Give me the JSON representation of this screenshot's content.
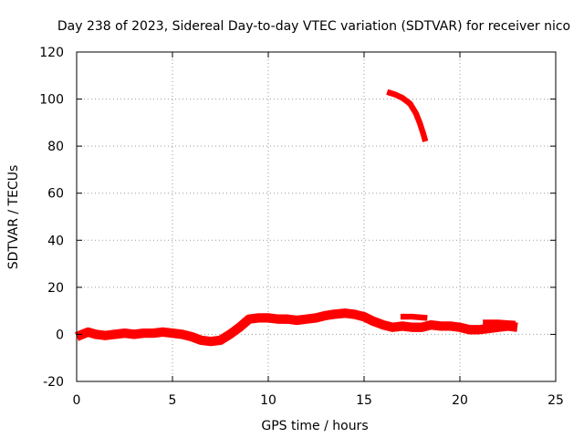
{
  "chart_data": {
    "type": "scatter",
    "title": "Day 238 of 2023, Sidereal Day-to-day VTEC variation (SDTVAR) for receiver nico",
    "xlabel": "GPS time / hours",
    "ylabel": "SDTVAR / TECUs",
    "xlim": [
      0,
      25
    ],
    "ylim": [
      -20,
      120
    ],
    "x_ticks": [
      0,
      5,
      10,
      15,
      20,
      25
    ],
    "y_ticks": [
      -20,
      0,
      20,
      40,
      60,
      80,
      100,
      120
    ],
    "x_tick_labels": [
      "0",
      "5",
      "10",
      "15",
      "20",
      "25"
    ],
    "y_tick_labels": [
      "-20",
      "0",
      "20",
      "40",
      "60",
      "80",
      "100",
      "120"
    ],
    "grid": true,
    "series_color": "#ff0000",
    "series": [
      {
        "name": "SDTVAR (lower band)",
        "width_units": 4,
        "points": [
          [
            0.0,
            -1
          ],
          [
            0.3,
            0
          ],
          [
            0.6,
            1
          ],
          [
            1.0,
            0
          ],
          [
            1.5,
            -0.5
          ],
          [
            2.0,
            0
          ],
          [
            2.5,
            0.5
          ],
          [
            3.0,
            0
          ],
          [
            3.5,
            0.5
          ],
          [
            4.0,
            0.5
          ],
          [
            4.5,
            1
          ],
          [
            5.0,
            0.5
          ],
          [
            5.5,
            0
          ],
          [
            6.0,
            -1
          ],
          [
            6.5,
            -2.5
          ],
          [
            7.0,
            -3
          ],
          [
            7.5,
            -2.5
          ],
          [
            8.0,
            0
          ],
          [
            8.5,
            3
          ],
          [
            9.0,
            6.5
          ],
          [
            9.5,
            7
          ],
          [
            10.0,
            7
          ],
          [
            10.5,
            6.5
          ],
          [
            11.0,
            6.5
          ],
          [
            11.5,
            6
          ],
          [
            12.0,
            6.5
          ],
          [
            12.5,
            7
          ],
          [
            13.0,
            8
          ],
          [
            13.4,
            8.5
          ],
          [
            14.0,
            9
          ],
          [
            14.5,
            8.5
          ],
          [
            15.0,
            7.5
          ],
          [
            15.5,
            5.5
          ],
          [
            16.0,
            4
          ],
          [
            16.5,
            3
          ],
          [
            17.0,
            3.5
          ],
          [
            17.5,
            3
          ],
          [
            18.0,
            3
          ],
          [
            18.5,
            4
          ],
          [
            19.0,
            3.5
          ],
          [
            19.5,
            3.5
          ],
          [
            20.0,
            3
          ],
          [
            20.5,
            2
          ],
          [
            21.0,
            2
          ],
          [
            21.5,
            2.5
          ],
          [
            22.0,
            3
          ],
          [
            22.5,
            3.5
          ],
          [
            23.0,
            3
          ]
        ]
      },
      {
        "name": "SDTVAR (upper segment)",
        "width_units": 2.5,
        "points": [
          [
            16.2,
            103
          ],
          [
            16.6,
            102
          ],
          [
            17.0,
            100.5
          ],
          [
            17.4,
            98
          ],
          [
            17.7,
            94
          ],
          [
            17.9,
            90
          ],
          [
            18.1,
            85
          ],
          [
            18.2,
            82
          ]
        ]
      },
      {
        "name": "SDTVAR (short patch 17-18.5 h)",
        "width_units": 2.5,
        "points": [
          [
            16.9,
            7.5
          ],
          [
            17.5,
            7.5
          ],
          [
            18.3,
            7
          ]
        ]
      },
      {
        "name": "SDTVAR (short patch 21-23 h)",
        "width_units": 2.5,
        "points": [
          [
            21.2,
            5
          ],
          [
            22.0,
            5
          ],
          [
            22.9,
            4.5
          ]
        ]
      }
    ]
  }
}
